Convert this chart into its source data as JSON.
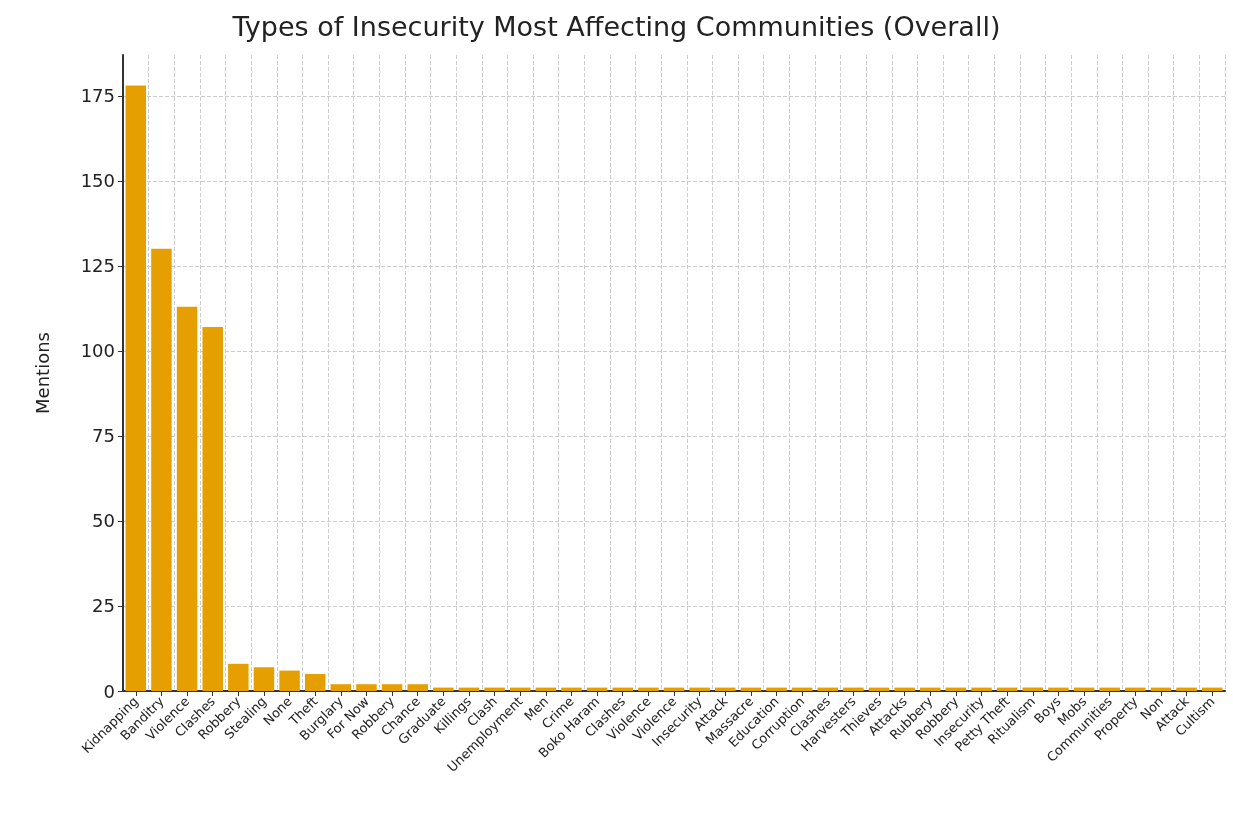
{
  "chart_data": {
    "type": "bar",
    "title": "Types of Insecurity Most Affecting Communities (Overall)",
    "ylabel": "Mentions",
    "categories": [
      "Kidnapping",
      "Banditry",
      "Violence",
      "Clashes",
      "Robbery",
      "Stealing",
      "None",
      "Theft",
      "Burglary",
      "For Now",
      "Robbery",
      "Chance",
      "Graduate",
      "Killings",
      "Clash",
      "Unemployment",
      "Men",
      "Crime",
      "Boko Haram",
      "Clashes",
      "Violence",
      "Violence",
      "Insecurity",
      "Attack",
      "Massacre",
      "Education",
      "Corruption",
      "Clashes",
      "Harvesters",
      "Thieves",
      "Attacks",
      "Rubbery",
      "Robbery",
      "Insecurity",
      "Petty Theft",
      "Ritualism",
      "Boys",
      "Mobs",
      "Communities",
      "Property",
      "Non",
      "Attack",
      "Cultism"
    ],
    "values": [
      178,
      130,
      113,
      107,
      8,
      7,
      6,
      5,
      2,
      2,
      2,
      2,
      1,
      1,
      1,
      1,
      1,
      1,
      1,
      1,
      1,
      1,
      1,
      1,
      1,
      1,
      1,
      1,
      1,
      1,
      1,
      1,
      1,
      1,
      1,
      1,
      1,
      1,
      1,
      1,
      1,
      1,
      1
    ],
    "color": "#e69f00",
    "ylim": [
      0,
      187
    ],
    "yticks": [
      0,
      25,
      50,
      75,
      100,
      125,
      150,
      175
    ],
    "grid": true
  }
}
